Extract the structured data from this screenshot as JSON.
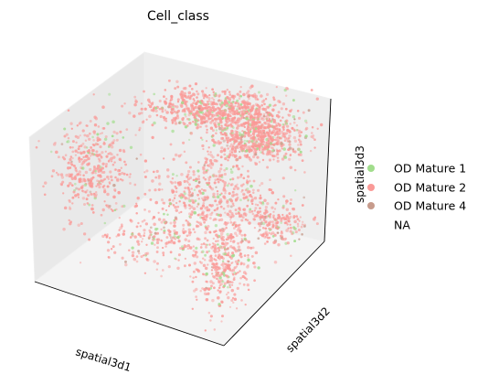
{
  "chart_data": {
    "type": "scatter",
    "projection": "3d",
    "title": "Cell_class",
    "xlabel": "spatial3d1",
    "ylabel": "spatial3d2",
    "zlabel": "spatial3d3",
    "ticks_shown": false,
    "legend_position": "right",
    "series": [
      {
        "name": "OD Mature 1",
        "color": "#a1dd8c",
        "share": 0.09
      },
      {
        "name": "OD Mature 2",
        "color": "#fa9a97",
        "share": 0.88
      },
      {
        "name": "OD Mature 4",
        "color": "#c79b8c",
        "share": 0.03
      },
      {
        "name": "NA",
        "color": "#ffffff",
        "share": 0
      }
    ],
    "colors": {
      "pane_left": "#e9e9e9",
      "pane_right": "#eeeeee",
      "pane_floor": "#f4f4f4",
      "edge": "#000000"
    }
  }
}
